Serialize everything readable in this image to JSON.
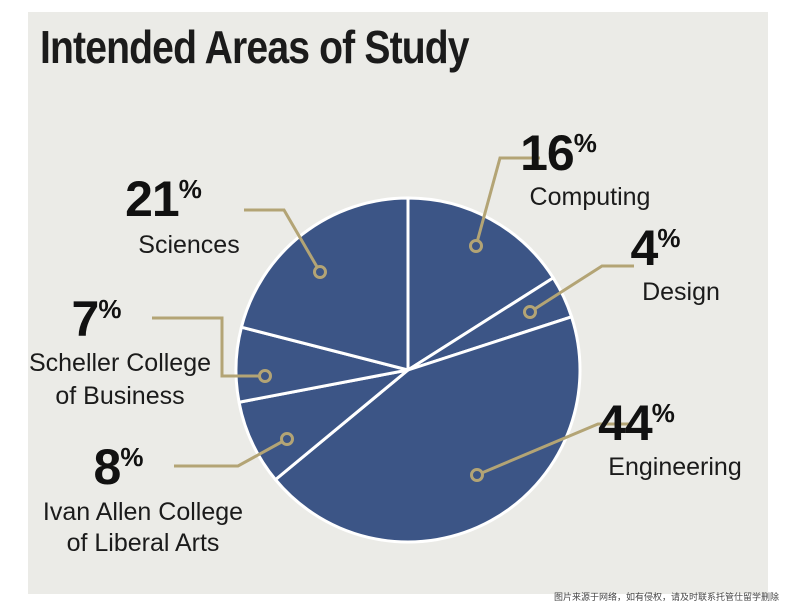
{
  "title": "Intended Areas of Study",
  "footer_note": "图片来源于网络，如有侵权，请及时联系托管仕留学删除",
  "colors": {
    "slice": "#3c5586",
    "slice_border": "#ffffff",
    "leader": "#b3a475",
    "panel": "#ebebe7",
    "text": "#1b1b1b"
  },
  "chart_data": {
    "type": "pie",
    "title": "Intended Areas of Study",
    "slices": [
      {
        "percent_label": "16",
        "value": 16,
        "label_lines": [
          "Computing"
        ]
      },
      {
        "percent_label": "4",
        "value": 4,
        "label_lines": [
          "Design"
        ]
      },
      {
        "percent_label": "44",
        "value": 44,
        "label_lines": [
          "Engineering"
        ]
      },
      {
        "percent_label": "8",
        "value": 8,
        "label_lines": [
          "Ivan Allen College",
          "of Liberal Arts"
        ]
      },
      {
        "percent_label": "7",
        "value": 7,
        "label_lines": [
          "Scheller College",
          "of Business"
        ]
      },
      {
        "percent_label": "21",
        "value": 21,
        "label_lines": [
          "Sciences"
        ]
      }
    ],
    "percent_sign": "%"
  }
}
